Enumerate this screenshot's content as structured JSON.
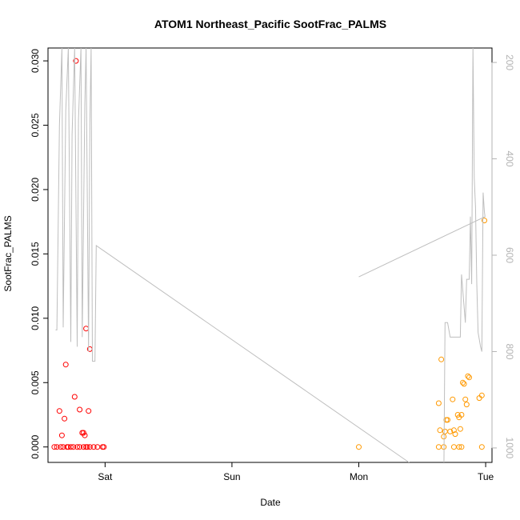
{
  "chart_data": {
    "type": "scatter",
    "title": "ATOM1 Northeast_Pacific SootFrac_PALMS",
    "xlabel": "Date",
    "ylabel": "SootFrac_PALMS",
    "x_unit": "days",
    "x_ticks": [
      {
        "label": "Sat",
        "value": 1
      },
      {
        "label": "Sun",
        "value": 2
      },
      {
        "label": "Mon",
        "value": 3
      },
      {
        "label": "Tue",
        "value": 4
      }
    ],
    "xlim": [
      0.55,
      4.05
    ],
    "ylim": [
      -0.0012,
      0.031
    ],
    "y_ticks": [
      0.0,
      0.005,
      0.01,
      0.015,
      0.02,
      0.025,
      0.03
    ],
    "y_tick_labels": [
      "0.000",
      "0.005",
      "0.010",
      "0.015",
      "0.020",
      "0.025",
      "0.030"
    ],
    "right_axis": {
      "ticks": [
        200,
        400,
        600,
        800,
        1000
      ],
      "ylim": [
        1030,
        170
      ],
      "color": "#b3b3b3"
    },
    "series": [
      {
        "color": "#ff0000",
        "points": [
          [
            0.6,
            0
          ],
          [
            0.62,
            0
          ],
          [
            0.65,
            0
          ],
          [
            0.67,
            0
          ],
          [
            0.7,
            0
          ],
          [
            0.73,
            0
          ],
          [
            0.75,
            0
          ],
          [
            0.78,
            0
          ],
          [
            0.8,
            0
          ],
          [
            0.83,
            0
          ],
          [
            0.85,
            0
          ],
          [
            0.88,
            0
          ],
          [
            0.91,
            0
          ],
          [
            0.94,
            0
          ],
          [
            0.98,
            0
          ],
          [
            0.99,
            0
          ],
          [
            0.71,
            0
          ],
          [
            0.86,
            0
          ],
          [
            0.64,
            0.0028
          ],
          [
            0.66,
            0.0009
          ],
          [
            0.68,
            0.0022
          ],
          [
            0.69,
            0.0064
          ],
          [
            0.76,
            0.0039
          ],
          [
            0.77,
            0.03
          ],
          [
            0.8,
            0.0029
          ],
          [
            0.82,
            0.0011
          ],
          [
            0.83,
            0.0011
          ],
          [
            0.84,
            0.0009
          ],
          [
            0.85,
            0.0092
          ],
          [
            0.87,
            0.0028
          ],
          [
            0.88,
            0.0076
          ]
        ]
      },
      {
        "color": "#ff9900",
        "points": [
          [
            3.0,
            0
          ],
          [
            3.63,
            0
          ],
          [
            3.67,
            0
          ],
          [
            3.75,
            0
          ],
          [
            3.79,
            0
          ],
          [
            3.81,
            0
          ],
          [
            3.97,
            0
          ],
          [
            3.63,
            0.0034
          ],
          [
            3.65,
            0.0068
          ],
          [
            3.64,
            0.0013
          ],
          [
            3.67,
            0.0008
          ],
          [
            3.68,
            0.0012
          ],
          [
            3.69,
            0.0021
          ],
          [
            3.7,
            0.0021
          ],
          [
            3.72,
            0.0012
          ],
          [
            3.74,
            0.0037
          ],
          [
            3.75,
            0.0013
          ],
          [
            3.76,
            0.001
          ],
          [
            3.78,
            0.0025
          ],
          [
            3.79,
            0.0023
          ],
          [
            3.8,
            0.0014
          ],
          [
            3.81,
            0.0025
          ],
          [
            3.82,
            0.005
          ],
          [
            3.83,
            0.0049
          ],
          [
            3.84,
            0.0037
          ],
          [
            3.85,
            0.0033
          ],
          [
            3.86,
            0.0055
          ],
          [
            3.87,
            0.0054
          ],
          [
            3.95,
            0.0038
          ],
          [
            3.97,
            0.004
          ],
          [
            3.99,
            0.0176
          ]
        ]
      },
      {
        "color": "#bebebe",
        "axis": "right",
        "line": true,
        "points": [
          [
            0.61,
            755
          ],
          [
            0.62,
            755
          ],
          [
            0.64,
            330
          ],
          [
            0.66,
            170
          ],
          [
            0.67,
            750
          ],
          [
            0.69,
            300
          ],
          [
            0.71,
            170
          ],
          [
            0.73,
            780
          ],
          [
            0.74,
            350
          ],
          [
            0.76,
            170
          ],
          [
            0.78,
            790
          ],
          [
            0.79,
            320
          ],
          [
            0.81,
            170
          ],
          [
            0.82,
            770
          ],
          [
            0.84,
            290
          ],
          [
            0.85,
            170
          ],
          [
            0.87,
            800
          ],
          [
            0.88,
            330
          ],
          [
            0.89,
            170
          ],
          [
            0.9,
            820
          ],
          [
            0.92,
            820
          ],
          [
            0.93,
            580
          ],
          [
            3.67,
            1080
          ],
          [
            3.68,
            740
          ],
          [
            3.7,
            740
          ],
          [
            3.72,
            770
          ],
          [
            3.8,
            770
          ],
          [
            3.81,
            640
          ],
          [
            3.84,
            740
          ],
          [
            3.85,
            650
          ],
          [
            3.87,
            650
          ],
          [
            3.88,
            520
          ],
          [
            3.89,
            660
          ],
          [
            3.9,
            170
          ],
          [
            3.91,
            440
          ],
          [
            3.92,
            500
          ],
          [
            3.93,
            660
          ],
          [
            3.94,
            760
          ],
          [
            3.96,
            790
          ],
          [
            3.97,
            800
          ],
          [
            3.98,
            470
          ],
          [
            3.99,
            510
          ],
          [
            3.995,
            520
          ],
          [
            3.0,
            645
          ]
        ]
      }
    ]
  }
}
